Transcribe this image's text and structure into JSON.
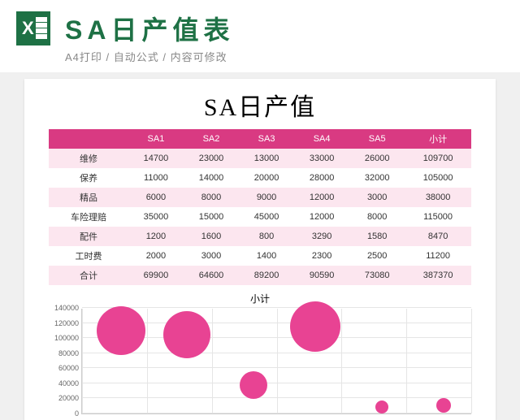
{
  "header": {
    "title": "SA日产值表",
    "subtitle": "A4打印 / 自动公式 / 内容可修改"
  },
  "doc": {
    "title": "SA日产值",
    "table": {
      "columns": [
        "",
        "SA1",
        "SA2",
        "SA3",
        "SA4",
        "SA5",
        "小计"
      ],
      "header_bg": "#d93a82",
      "header_fg": "#ffffff",
      "stripe_bg": "#fce6ef",
      "rows": [
        [
          "维修",
          "14700",
          "23000",
          "13000",
          "33000",
          "26000",
          "109700"
        ],
        [
          "保养",
          "11000",
          "14000",
          "20000",
          "28000",
          "32000",
          "105000"
        ],
        [
          "精品",
          "6000",
          "8000",
          "9000",
          "12000",
          "3000",
          "38000"
        ],
        [
          "车险理赔",
          "35000",
          "15000",
          "45000",
          "12000",
          "8000",
          "115000"
        ],
        [
          "配件",
          "1200",
          "1600",
          "800",
          "3290",
          "1580",
          "8470"
        ],
        [
          "工时费",
          "2000",
          "3000",
          "1400",
          "2300",
          "2500",
          "11200"
        ],
        [
          "合计",
          "69900",
          "64600",
          "89200",
          "90590",
          "73080",
          "387370"
        ]
      ]
    },
    "chart": {
      "title": "小计",
      "type": "bubble",
      "ylim": [
        0,
        140000
      ],
      "ytick_step": 20000,
      "bubble_color": "#e84393",
      "grid_color": "#e5e5e5",
      "points": [
        {
          "x": 0.1,
          "y": 109700,
          "r": 30
        },
        {
          "x": 0.27,
          "y": 105000,
          "r": 29
        },
        {
          "x": 0.44,
          "y": 38000,
          "r": 17
        },
        {
          "x": 0.6,
          "y": 115000,
          "r": 31
        },
        {
          "x": 0.77,
          "y": 8470,
          "r": 8
        },
        {
          "x": 0.93,
          "y": 11200,
          "r": 9
        }
      ]
    }
  }
}
